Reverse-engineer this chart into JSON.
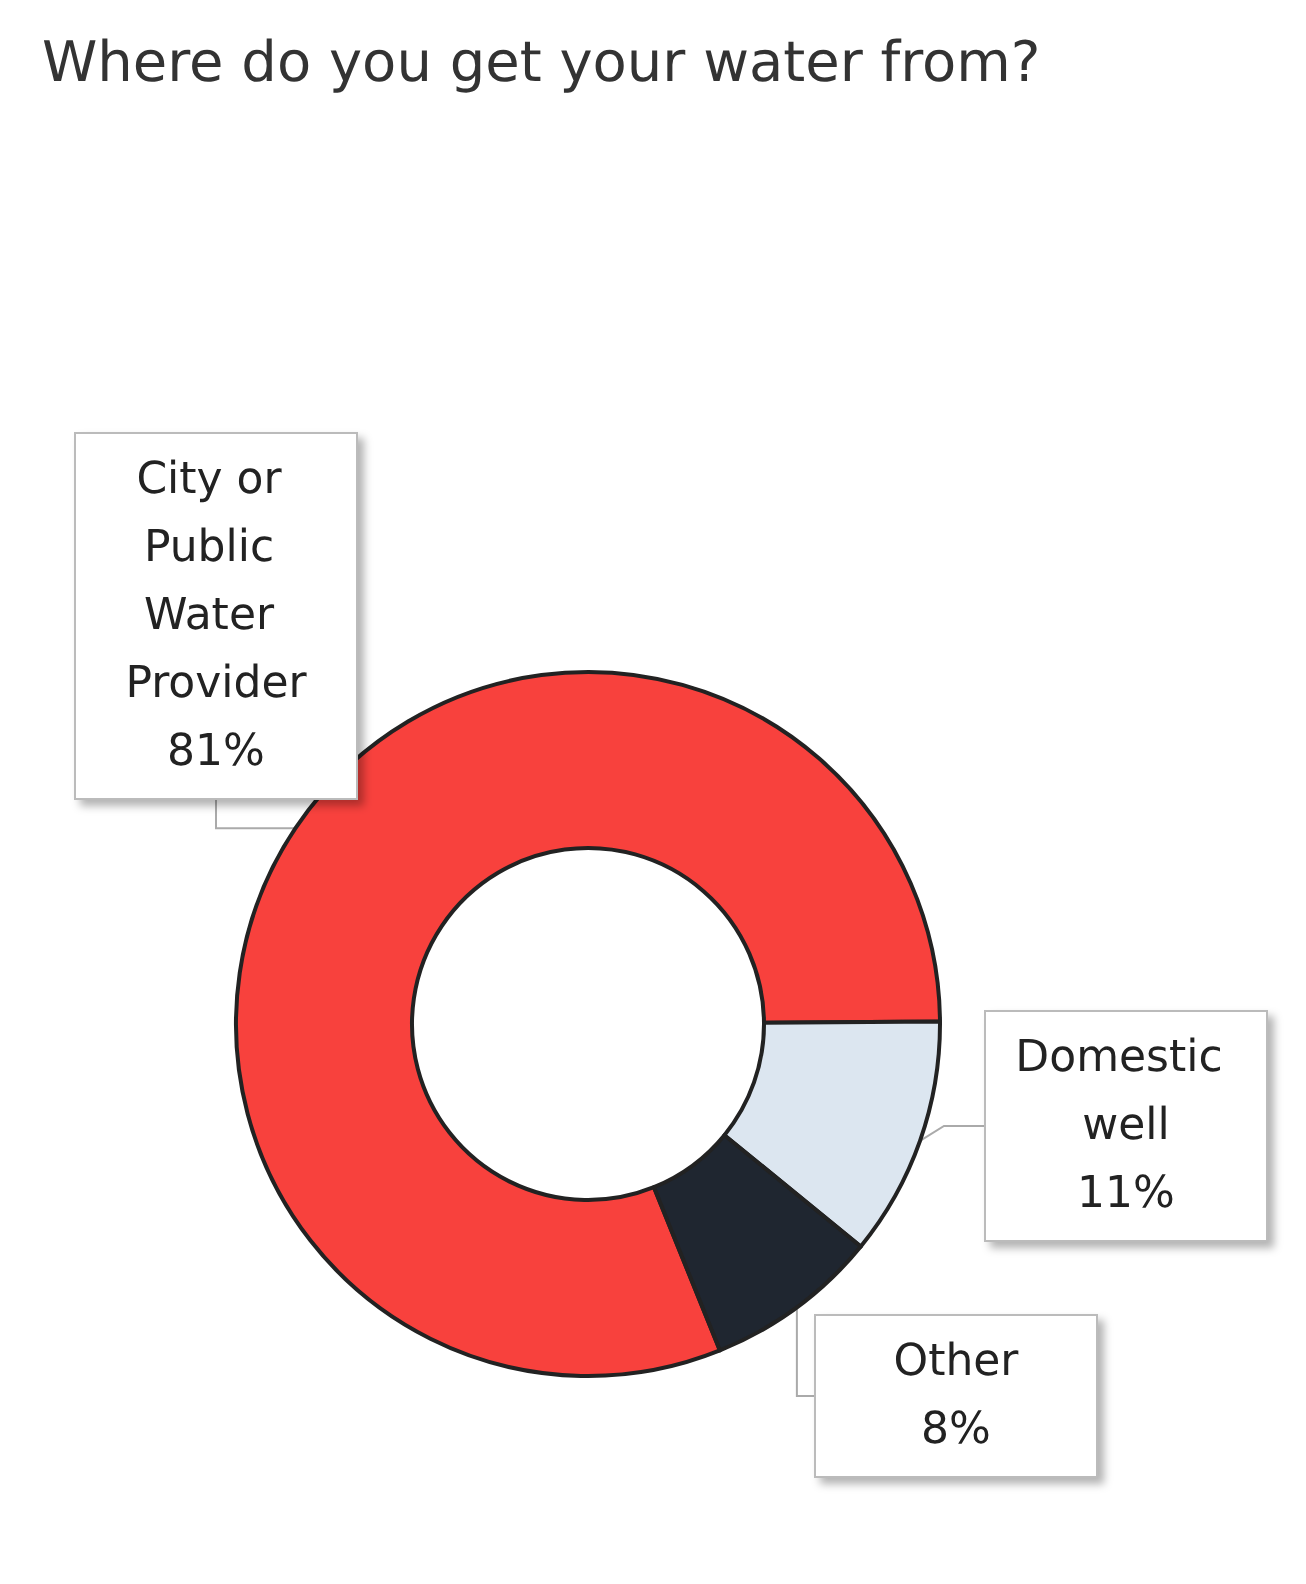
{
  "chart_data": {
    "type": "donut",
    "title": "Where do you get your water from?",
    "categories": [
      "City or Public Water Provider",
      "Domestic well",
      "Other"
    ],
    "values": [
      81,
      11,
      8
    ],
    "value_labels": [
      "81%",
      "11%",
      "8%"
    ],
    "colors": [
      "#f8413d",
      "#dce6f0",
      "#1f2630"
    ],
    "data_labels": true,
    "legend": false
  }
}
